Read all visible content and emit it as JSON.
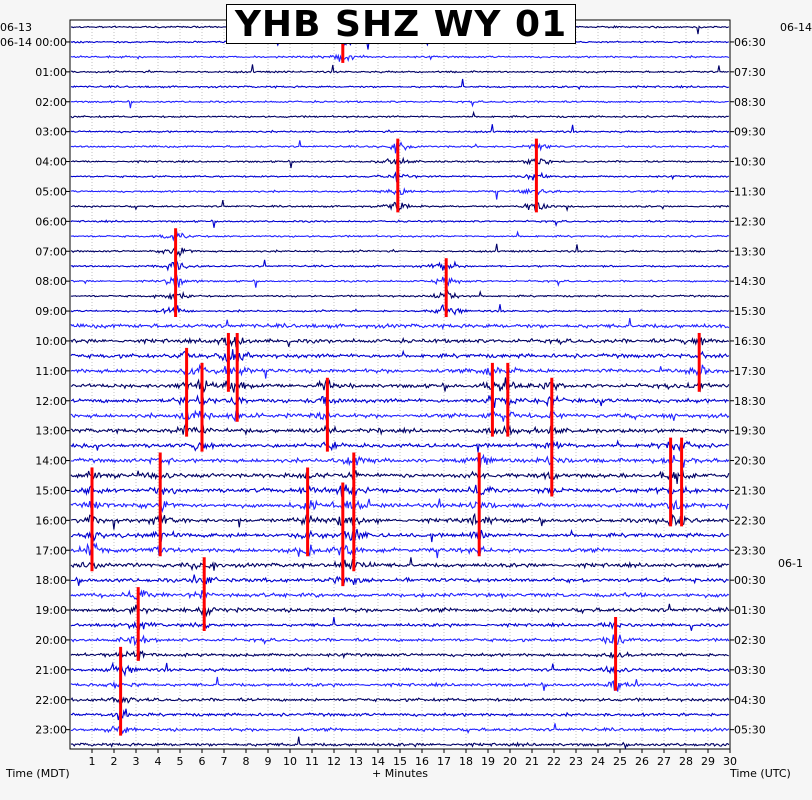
{
  "title": "YHB SHZ WY 01",
  "left_dates": {
    "first": "06-13",
    "second": "06-14"
  },
  "right_dates": {
    "first": "06-14",
    "second": "06-1"
  },
  "left_axis_label": "Time (MDT)",
  "right_axis_label": "Time (UTC)",
  "x_axis_label": "+ Minutes",
  "colors": {
    "trace_a": "#000066",
    "trace_b": "#0000d0",
    "trace_c": "#2222ff",
    "event_marker": "#ff0000",
    "background": "#ffffff",
    "page": "#f6f6f6"
  },
  "chart_data": {
    "type": "line",
    "title": "YHB SHZ WY 01",
    "xlabel": "+ Minutes",
    "ylabel_left": "Time (MDT)",
    "ylabel_right": "Time (UTC)",
    "xlim": [
      0,
      30
    ],
    "x_ticks": [
      "1",
      "2",
      "3",
      "4",
      "5",
      "6",
      "7",
      "8",
      "9",
      "10",
      "11",
      "12",
      "13",
      "14",
      "15",
      "16",
      "17",
      "18",
      "19",
      "20",
      "21",
      "22",
      "23",
      "24",
      "25",
      "26",
      "27",
      "28",
      "29",
      "30"
    ],
    "left_hour_labels": [
      "00:00",
      "01:00",
      "02:00",
      "03:00",
      "04:00",
      "05:00",
      "06:00",
      "07:00",
      "08:00",
      "09:00",
      "10:00",
      "11:00",
      "12:00",
      "13:00",
      "14:00",
      "15:00",
      "16:00",
      "17:00",
      "18:00",
      "19:00",
      "20:00",
      "21:00",
      "22:00",
      "23:00"
    ],
    "right_hour_labels": [
      "06:30",
      "07:30",
      "08:30",
      "09:30",
      "10:30",
      "11:30",
      "12:30",
      "13:30",
      "14:30",
      "15:30",
      "16:30",
      "17:30",
      "18:30",
      "19:30",
      "20:30",
      "21:30",
      "22:30",
      "23:30",
      "00:30",
      "01:30",
      "02:30",
      "03:30",
      "04:30",
      "05:30"
    ],
    "trace_count": 49,
    "trace_interval_minutes": 30,
    "events": [
      {
        "minute": 12.4,
        "trace_start": 0,
        "trace_end": 2
      },
      {
        "minute": 14.9,
        "trace_start": 8,
        "trace_end": 12
      },
      {
        "minute": 21.2,
        "trace_start": 8,
        "trace_end": 12
      },
      {
        "minute": 4.8,
        "trace_start": 14,
        "trace_end": 19
      },
      {
        "minute": 17.1,
        "trace_start": 16,
        "trace_end": 19
      },
      {
        "minute": 7.2,
        "trace_start": 21,
        "trace_end": 24
      },
      {
        "minute": 7.6,
        "trace_start": 21,
        "trace_end": 26
      },
      {
        "minute": 5.3,
        "trace_start": 22,
        "trace_end": 27
      },
      {
        "minute": 6.0,
        "trace_start": 23,
        "trace_end": 28
      },
      {
        "minute": 28.6,
        "trace_start": 21,
        "trace_end": 24
      },
      {
        "minute": 19.2,
        "trace_start": 23,
        "trace_end": 27
      },
      {
        "minute": 19.9,
        "trace_start": 23,
        "trace_end": 27
      },
      {
        "minute": 11.7,
        "trace_start": 24,
        "trace_end": 28
      },
      {
        "minute": 21.9,
        "trace_start": 24,
        "trace_end": 31
      },
      {
        "minute": 27.3,
        "trace_start": 28,
        "trace_end": 33
      },
      {
        "minute": 27.8,
        "trace_start": 28,
        "trace_end": 33
      },
      {
        "minute": 4.1,
        "trace_start": 29,
        "trace_end": 35
      },
      {
        "minute": 18.6,
        "trace_start": 29,
        "trace_end": 35
      },
      {
        "minute": 12.9,
        "trace_start": 29,
        "trace_end": 36
      },
      {
        "minute": 1.0,
        "trace_start": 30,
        "trace_end": 36
      },
      {
        "minute": 10.8,
        "trace_start": 30,
        "trace_end": 35
      },
      {
        "minute": 12.4,
        "trace_start": 31,
        "trace_end": 37
      },
      {
        "minute": 6.1,
        "trace_start": 36,
        "trace_end": 40
      },
      {
        "minute": 3.1,
        "trace_start": 38,
        "trace_end": 42
      },
      {
        "minute": 24.8,
        "trace_start": 40,
        "trace_end": 44
      },
      {
        "minute": 2.3,
        "trace_start": 42,
        "trace_end": 47
      }
    ]
  }
}
